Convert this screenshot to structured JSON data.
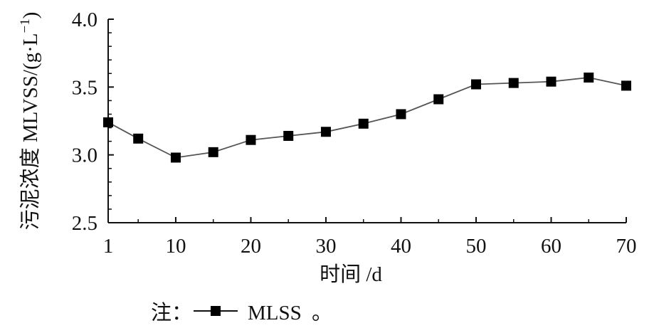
{
  "chart_data": {
    "type": "line",
    "xlabel": "时间 /d",
    "ylabel": "污泥浓度 MLVSS/(g·L",
    "ylabel_superscript": "−1",
    "ylabel_close": ")",
    "x_ticks": [
      "1",
      "10",
      "20",
      "30",
      "40",
      "50",
      "60",
      "70"
    ],
    "y_ticks": [
      "2.5",
      "3.0",
      "3.5",
      "4.0"
    ],
    "xlim": [
      1,
      70
    ],
    "ylim": [
      2.5,
      4.0
    ],
    "grid": false,
    "series": [
      {
        "name": "MLSS",
        "marker": "square",
        "color": "#000000",
        "line_color": "#555555",
        "x": [
          1,
          5,
          10,
          15,
          20,
          25,
          30,
          35,
          40,
          45,
          50,
          55,
          60,
          65,
          70
        ],
        "y": [
          3.24,
          3.12,
          2.98,
          3.02,
          3.11,
          3.14,
          3.17,
          3.23,
          3.3,
          3.41,
          3.52,
          3.53,
          3.54,
          3.57,
          3.51
        ]
      }
    ]
  },
  "note": {
    "prefix": "注：",
    "series_label": "MLSS",
    "suffix": "。"
  }
}
